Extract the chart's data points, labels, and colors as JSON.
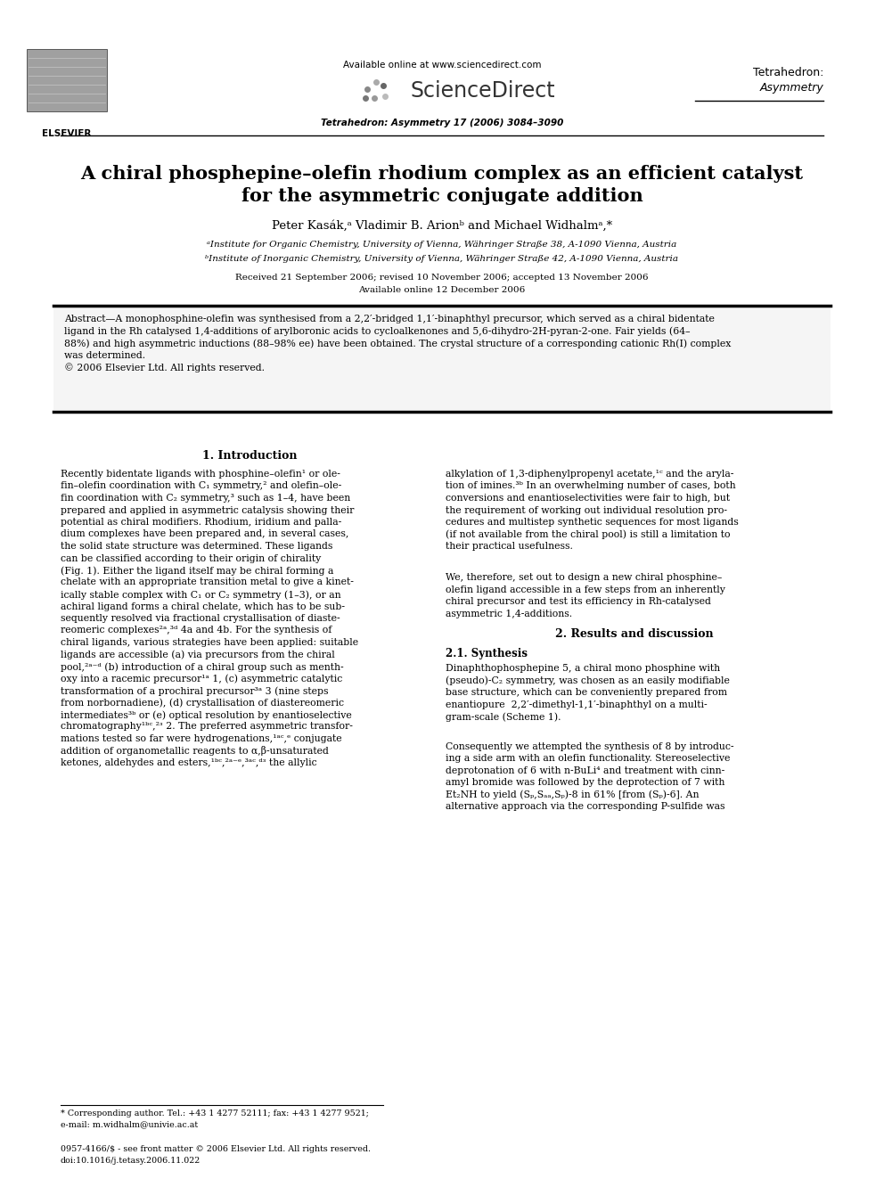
{
  "page_width": 9.92,
  "page_height": 13.23,
  "bg_color": "#ffffff",
  "header_available_online": "Available online at www.sciencedirect.com",
  "header_sd": "ScienceDirect",
  "header_journal1": "Tetrahedron:",
  "header_journal2": "Asymmetry",
  "header_journal_info": "Tetrahedron: Asymmetry 17 (2006) 3084–3090",
  "title_line1": "A chiral phosphepine–olefin rhodium complex as an efficient catalyst",
  "title_line2": "for the asymmetric conjugate addition",
  "authors": "Peter Kasák,ᵃ Vladimir B. Arionᵇ and Michael Widhalmᵃ,*",
  "affil_a": "ᵃInstitute for Organic Chemistry, University of Vienna, Währinger Straße 38, A-1090 Vienna, Austria",
  "affil_b": "ᵇInstitute of Inorganic Chemistry, University of Vienna, Währinger Straße 42, A-1090 Vienna, Austria",
  "received": "Received 21 September 2006; revised 10 November 2006; accepted 13 November 2006",
  "available_online_date": "Available online 12 December 2006",
  "abstract_lines": [
    "Abstract—A monophosphine-olefin was synthesised from a 2,2′-bridged 1,1′-binaphthyl precursor, which served as a chiral bidentate",
    "ligand in the Rh catalysed 1,4-additions of arylboronic acids to cycloalkenones and 5,6-dihydro-2H-pyran-2-one. Fair yields (64–",
    "88%) and high asymmetric inductions (88–98% ee) have been obtained. The crystal structure of a corresponding cationic Rh(I) complex",
    "was determined.",
    "© 2006 Elsevier Ltd. All rights reserved."
  ],
  "sec1_title": "1. Introduction",
  "sec1_left": [
    "Recently bidentate ligands with phosphine–olefin¹ or ole-",
    "fin–olefin coordination with C₁ symmetry,² and olefin–ole-",
    "fin coordination with C₂ symmetry,³ such as 1–4, have been",
    "prepared and applied in asymmetric catalysis showing their",
    "potential as chiral modifiers. Rhodium, iridium and palla-",
    "dium complexes have been prepared and, in several cases,",
    "the solid state structure was determined. These ligands",
    "can be classified according to their origin of chirality",
    "(Fig. 1). Either the ligand itself may be chiral forming a",
    "chelate with an appropriate transition metal to give a kinet-",
    "ically stable complex with C₁ or C₂ symmetry (1–3), or an",
    "achiral ligand forms a chiral chelate, which has to be sub-",
    "sequently resolved via fractional crystallisation of diaste-",
    "reomeric complexes²ᵃ,³ᵈ 4a and 4b. For the synthesis of",
    "chiral ligands, various strategies have been applied: suitable",
    "ligands are accessible (a) via precursors from the chiral",
    "pool,²ᵃ⁻ᵈ (b) introduction of a chiral group such as menth-",
    "oxy into a racemic precursor¹ᵃ 1, (c) asymmetric catalytic",
    "transformation of a prochiral precursor³ᵃ 3 (nine steps",
    "from norbornadiene), (d) crystallisation of diastereomeric",
    "intermediates³ᵇ or (e) optical resolution by enantioselective",
    "chromatography¹ᵇᶜ,²ᵌ 2. The preferred asymmetric transfor-",
    "mations tested so far were hydrogenations,¹ᵃᶜ,ᵉ conjugate",
    "addition of organometallic reagents to α,β-unsaturated",
    "ketones, aldehydes and esters,¹ᵇᶜ,²ᵃ⁻ᵉ,³ᵃᶜ,ᵈᵌ the allylic"
  ],
  "sec1_right": [
    "alkylation of 1,3-diphenylpropenyl acetate,¹ᶜ and the aryla-",
    "tion of imines.³ᵇ In an overwhelming number of cases, both",
    "conversions and enantioselectivities were fair to high, but",
    "the requirement of working out individual resolution pro-",
    "cedures and multistep synthetic sequences for most ligands",
    "(if not available from the chiral pool) is still a limitation to",
    "their practical usefulness.",
    "",
    "We, therefore, set out to design a new chiral phosphine–",
    "olefin ligand accessible in a few steps from an inherently",
    "chiral precursor and test its efficiency in Rh-catalysed",
    "asymmetric 1,4-additions."
  ],
  "sec2_title": "2. Results and discussion",
  "sec2_subtitle": "2.1. Synthesis",
  "sec2_right": [
    "Dinaphthophosphepine 5, a chiral mono phosphine with",
    "(pseudo)-C₂ symmetry, was chosen as an easily modifiable",
    "base structure, which can be conveniently prepared from",
    "enantiopure  2,2′-dimethyl-1,1′-binaphthyl on a multi-",
    "gram-scale (Scheme 1).",
    "",
    "Consequently we attempted the synthesis of 8 by introduc-",
    "ing a side arm with an olefin functionality. Stereoselective",
    "deprotonation of 6 with n-BuLi⁴ and treatment with cinn-",
    "amyl bromide was followed by the deprotection of 7 with",
    "Et₂NH to yield (Sₚ,Sₐₐ,Sₚ)-8 in 61% [from (Sₚ)-6]. An",
    "alternative approach via the corresponding P-sulfide was"
  ],
  "footnote_line1": "* Corresponding author. Tel.: +43 1 4277 52111; fax: +43 1 4277 9521;",
  "footnote_line2": "e-mail: m.widhalm@univie.ac.at",
  "copyright1": "0957-4166/$ - see front matter © 2006 Elsevier Ltd. All rights reserved.",
  "copyright2": "doi:10.1016/j.tetasy.2006.11.022"
}
